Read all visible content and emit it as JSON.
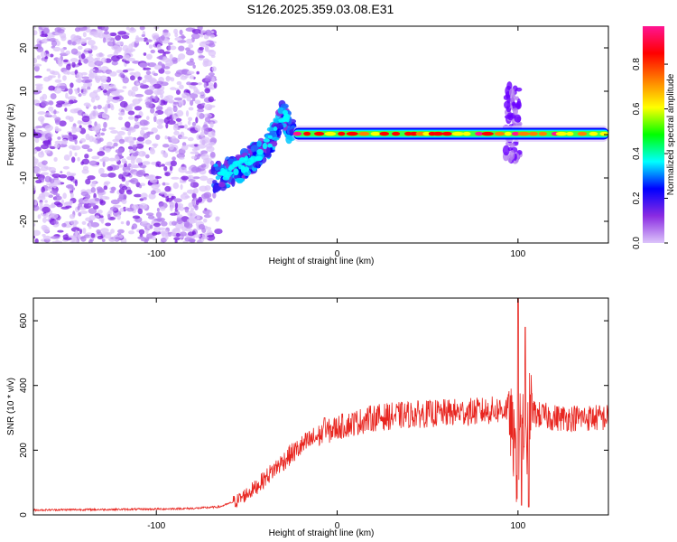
{
  "title": "S126.2025.359.03.08.E31",
  "chart_data": [
    {
      "type": "heatmap",
      "xlabel": "Height of straight line (km)",
      "ylabel": "Frequency (Hz)",
      "xlim": [
        -168,
        150
      ],
      "ylim": [
        -25,
        25
      ],
      "xticks": [
        -100,
        0,
        100
      ],
      "xtick_labels": [
        "-100",
        "0",
        "100"
      ],
      "yticks": [
        -20,
        -10,
        0,
        10,
        20
      ],
      "ytick_labels": [
        "-20",
        "-10",
        "0",
        "10",
        "20"
      ],
      "colorbar": {
        "label": "Normalized spectral amplitude",
        "range": [
          0,
          0.97
        ],
        "ticks": [
          0.0,
          0.2,
          0.4,
          0.6,
          0.8
        ],
        "tick_labels": [
          "0.0",
          "0.2",
          "0.4",
          "0.6",
          "0.8"
        ],
        "colormap": [
          "#dcc4fa",
          "#8a2be2",
          "#0000ff",
          "#00ffff",
          "#00ff00",
          "#ffff00",
          "#ff8000",
          "#ff0000",
          "#ff1493"
        ]
      },
      "features": [
        {
          "name": "noise",
          "x_range": [
            -168,
            -68
          ],
          "f_range": [
            -25,
            25
          ],
          "amplitude": 0.08
        },
        {
          "name": "chirp",
          "points": [
            [
              -68,
              -10
            ],
            [
              -55,
              -8
            ],
            [
              -45,
              -5
            ],
            [
              -38,
              -2
            ],
            [
              -33,
              2
            ],
            [
              -30,
              5
            ],
            [
              -27,
              2
            ],
            [
              -24,
              0.5
            ]
          ],
          "amplitude": 0.25
        },
        {
          "name": "tone",
          "x_range": [
            -24,
            150
          ],
          "f_center": 0.2,
          "amplitude": 0.85
        },
        {
          "name": "burst",
          "x": 97,
          "f_range": [
            -6,
            12
          ],
          "amplitude": 0.2
        }
      ]
    },
    {
      "type": "line",
      "xlabel": "Height of straight line (km)",
      "ylabel": "SNR (10 * v/v)",
      "xlim": [
        -168,
        150
      ],
      "ylim": [
        0,
        670
      ],
      "xticks": [
        -100,
        0,
        100
      ],
      "xtick_labels": [
        "-100",
        "0",
        "100"
      ],
      "yticks": [
        0,
        200,
        400,
        600
      ],
      "ytick_labels": [
        "0",
        "200",
        "400",
        "600"
      ],
      "color": "#e8251f",
      "series": [
        {
          "x": [
            -168,
            -150,
            -120,
            -100,
            -80,
            -65,
            -55,
            -45,
            -35,
            -25,
            -15,
            -8,
            0,
            10,
            20,
            30,
            40,
            60,
            80,
            90,
            95,
            98,
            100,
            102,
            104,
            106,
            110,
            120,
            140,
            150
          ],
          "y": [
            15,
            16,
            17,
            18,
            20,
            25,
            45,
            85,
            140,
            190,
            230,
            250,
            270,
            285,
            300,
            305,
            310,
            315,
            320,
            325,
            330,
            200,
            120,
            360,
            150,
            330,
            310,
            300,
            300,
            300
          ],
          "spikes": [
            {
              "x": -7,
              "y": 300
            },
            {
              "x": 100,
              "y": 670
            },
            {
              "x": 102,
              "y": 30
            },
            {
              "x": 104,
              "y": 580
            },
            {
              "x": 106,
              "y": 25
            }
          ]
        }
      ]
    }
  ]
}
